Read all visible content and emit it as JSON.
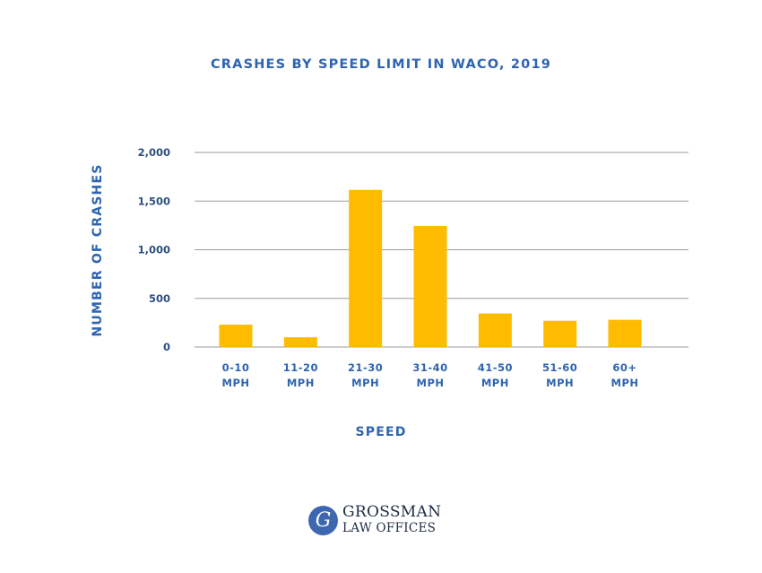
{
  "chart_data": {
    "type": "bar",
    "title": "CRASHES BY SPEED LIMIT IN WACO, 2019",
    "xlabel": "SPEED",
    "ylabel": "NUMBER OF CRASHES",
    "categories": [
      [
        "0-10",
        "MPH"
      ],
      [
        "11-20",
        "MPH"
      ],
      [
        "21-30",
        "MPH"
      ],
      [
        "31-40",
        "MPH"
      ],
      [
        "41-50",
        "MPH"
      ],
      [
        "51-60",
        "MPH"
      ],
      [
        "60+",
        "MPH"
      ]
    ],
    "values": [
      230,
      100,
      1615,
      1245,
      345,
      270,
      280
    ],
    "ylim": [
      0,
      2000
    ],
    "yticks": [
      0,
      500,
      1000,
      1500,
      2000
    ],
    "ytick_labels": [
      "0",
      "500",
      "1,000",
      "1,500",
      "2,000"
    ],
    "grid": true,
    "legend": "none",
    "bar_color": "#ffbb00",
    "grid_color": "#9e9e9e",
    "text_color": "#2e64b0"
  },
  "logo": {
    "emblem": "G",
    "line1": "GROSSMAN",
    "line2": "LAW OFFICES",
    "emblem_color": "#3d67b0"
  }
}
